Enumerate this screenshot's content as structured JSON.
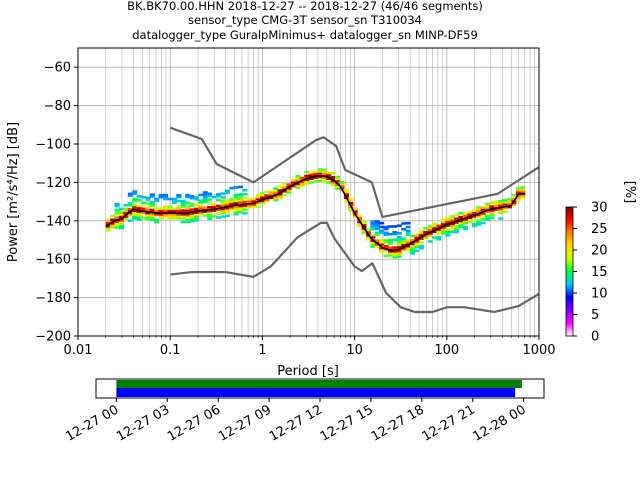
{
  "title_lines": [
    "BK.BK70.00.HHN   2018-12-27 -- 2018-12-27  (46/46 segments)",
    "sensor_type CMG-3T sensor_sn T310034",
    "datalogger_type GuralpMinimus+ datalogger_sn MINP-DF59"
  ],
  "chart_data": [
    {
      "type": "heatmap",
      "xlabel": "Period [s]",
      "ylabel": "Power [m²/s⁴/Hz] [dB]",
      "x_scale": "log",
      "xlim": [
        0.01,
        1000
      ],
      "ylim": [
        -200,
        -50
      ],
      "x_ticks": [
        0.01,
        0.1,
        1,
        10,
        100,
        1000
      ],
      "x_tick_labels": [
        "0.01",
        "0.1",
        "1",
        "10",
        "100",
        "1000"
      ],
      "y_ticks": [
        -200,
        -180,
        -160,
        -140,
        -120,
        -100,
        -80,
        -60
      ],
      "y_tick_labels": [
        "−200",
        "−180",
        "−160",
        "−140",
        "−120",
        "−100",
        "−80",
        "−60"
      ],
      "grid": true,
      "noise_models": [
        {
          "name": "NHNM",
          "color": "#666666",
          "x": [
            0.1,
            0.22,
            0.32,
            0.8,
            3.8,
            4.6,
            6.3,
            7.9,
            15.4,
            20,
            354.8,
            1000
          ],
          "y": [
            -91.5,
            -97.4,
            -110.5,
            -120,
            -98,
            -96.5,
            -101,
            -113.5,
            -120,
            -138,
            -126,
            -112
          ]
        },
        {
          "name": "NLNM",
          "color": "#666666",
          "x": [
            0.1,
            0.17,
            0.4,
            0.8,
            1.24,
            2.4,
            4.3,
            5.0,
            6.0,
            10,
            12,
            15.6,
            21.9,
            31.6,
            45,
            70,
            101,
            154,
            328,
            600,
            1000
          ],
          "y": [
            -168,
            -166.7,
            -166.7,
            -169.2,
            -163.7,
            -148.6,
            -141.1,
            -141.1,
            -149,
            -163.8,
            -166.2,
            -162.1,
            -177.5,
            -185,
            -187.5,
            -187.5,
            -185,
            -185,
            -187.5,
            -184.4,
            -178
          ]
        }
      ],
      "median": {
        "x": [
          0.02,
          0.025,
          0.03,
          0.035,
          0.04,
          0.05,
          0.07,
          0.1,
          0.15,
          0.2,
          0.3,
          0.5,
          0.8,
          1.0,
          1.5,
          2.0,
          3.0,
          4.0,
          5.0,
          6.0,
          7.0,
          8.0,
          10.0,
          12.0,
          15.0,
          20.0,
          25.0,
          30.0,
          40.0,
          60.0,
          100.0,
          150.0,
          200.0,
          300.0,
          400.0,
          500.0,
          600.0,
          700.0
        ],
        "y": [
          -143,
          -140,
          -139,
          -136,
          -134,
          -135,
          -136,
          -136,
          -136,
          -135,
          -134,
          -132,
          -131,
          -129,
          -126,
          -122,
          -118,
          -116.5,
          -117,
          -119,
          -122,
          -127,
          -136,
          -142,
          -149,
          -154,
          -155.5,
          -155,
          -152,
          -147,
          -142,
          -139,
          -137,
          -134,
          -133,
          -132,
          -126,
          -126
        ]
      },
      "colorbar": {
        "label": "[%]",
        "range": [
          0,
          30
        ],
        "ticks": [
          0,
          5,
          10,
          15,
          20,
          25,
          30
        ],
        "colormap": [
          "#ffffff",
          "#ff00ff",
          "#8000ff",
          "#0000ff",
          "#00c8ff",
          "#00ff40",
          "#c8ff00",
          "#ffd700",
          "#ff8000",
          "#ff0000",
          "#800000"
        ]
      }
    },
    {
      "type": "bar",
      "title": "",
      "x_tick_labels": [
        "12-27 00",
        "12-27 03",
        "12-27 06",
        "12-27 09",
        "12-27 12",
        "12-27 15",
        "12-27 18",
        "12-27 21",
        "12-28 00"
      ],
      "x_ticks_hours": [
        0,
        3,
        6,
        9,
        12,
        15,
        18,
        21,
        24
      ],
      "xlim_hours": [
        -1.2,
        25.2
      ],
      "series": [
        {
          "color": "#008000",
          "start_hours": 0,
          "end_hours": 23.9
        },
        {
          "color": "#0000ff",
          "start_hours": 0,
          "end_hours": 23.5
        }
      ]
    }
  ]
}
